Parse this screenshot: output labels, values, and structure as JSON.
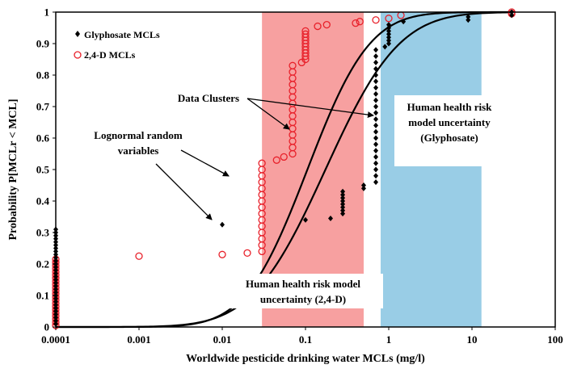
{
  "chart_data": {
    "type": "scatter",
    "title": "",
    "xlabel": "Worldwide pesticide drinking water MCLs (mg/l)",
    "ylabel": "Probability P[MCLr < MCL]",
    "x_scale": "log",
    "xlim": [
      0.0001,
      100
    ],
    "ylim": [
      0,
      1
    ],
    "x_ticks": [
      {
        "value": 0.0001,
        "label": "0.0001"
      },
      {
        "value": 0.001,
        "label": "0.001"
      },
      {
        "value": 0.01,
        "label": "0.01"
      },
      {
        "value": 0.1,
        "label": "0.1"
      },
      {
        "value": 1,
        "label": "1"
      },
      {
        "value": 10,
        "label": "10"
      },
      {
        "value": 100,
        "label": "100"
      }
    ],
    "y_ticks": [
      {
        "value": 0,
        "label": "0"
      },
      {
        "value": 0.1,
        "label": "0.1"
      },
      {
        "value": 0.2,
        "label": "0.2"
      },
      {
        "value": 0.3,
        "label": "0.3"
      },
      {
        "value": 0.4,
        "label": "0.4"
      },
      {
        "value": 0.5,
        "label": "0.5"
      },
      {
        "value": 0.6,
        "label": "0.6"
      },
      {
        "value": 0.7,
        "label": "0.7"
      },
      {
        "value": 0.8,
        "label": "0.8"
      },
      {
        "value": 0.9,
        "label": "0.9"
      },
      {
        "value": 1,
        "label": "1"
      }
    ],
    "grid": false,
    "legend_position": "top-left",
    "colors": {
      "glyphosate": "#000000",
      "d24": "#e8202a",
      "band_24d": "#f7a0a0",
      "band_gly": "#99cde6",
      "curve": "#000000"
    },
    "bands": [
      {
        "id": "band-24d",
        "x_from": 0.03,
        "x_to": 0.5,
        "color": "#f7a0a0"
      },
      {
        "id": "band-glyphosate",
        "x_from": 0.8,
        "x_to": 13,
        "color": "#99cde6"
      }
    ],
    "series": [
      {
        "name": "Glyphosate MCLs",
        "marker": "diamond",
        "color": "#000000",
        "points": [
          [
            0.0001,
            0.01
          ],
          [
            0.0001,
            0.02
          ],
          [
            0.0001,
            0.03
          ],
          [
            0.0001,
            0.04
          ],
          [
            0.0001,
            0.05
          ],
          [
            0.0001,
            0.06
          ],
          [
            0.0001,
            0.07
          ],
          [
            0.0001,
            0.08
          ],
          [
            0.0001,
            0.09
          ],
          [
            0.0001,
            0.1
          ],
          [
            0.0001,
            0.11
          ],
          [
            0.0001,
            0.12
          ],
          [
            0.0001,
            0.13
          ],
          [
            0.0001,
            0.14
          ],
          [
            0.0001,
            0.15
          ],
          [
            0.0001,
            0.16
          ],
          [
            0.0001,
            0.17
          ],
          [
            0.0001,
            0.18
          ],
          [
            0.0001,
            0.19
          ],
          [
            0.0001,
            0.2
          ],
          [
            0.0001,
            0.21
          ],
          [
            0.0001,
            0.22
          ],
          [
            0.0001,
            0.23
          ],
          [
            0.0001,
            0.24
          ],
          [
            0.0001,
            0.25
          ],
          [
            0.0001,
            0.26
          ],
          [
            0.0001,
            0.27
          ],
          [
            0.0001,
            0.28
          ],
          [
            0.0001,
            0.29
          ],
          [
            0.0001,
            0.3
          ],
          [
            0.0001,
            0.31
          ],
          [
            0.01,
            0.325
          ],
          [
            0.1,
            0.34
          ],
          [
            0.2,
            0.345
          ],
          [
            0.28,
            0.36
          ],
          [
            0.28,
            0.37
          ],
          [
            0.28,
            0.38
          ],
          [
            0.28,
            0.39
          ],
          [
            0.28,
            0.4
          ],
          [
            0.28,
            0.41
          ],
          [
            0.28,
            0.42
          ],
          [
            0.28,
            0.43
          ],
          [
            0.5,
            0.44
          ],
          [
            0.5,
            0.45
          ],
          [
            0.7,
            0.46
          ],
          [
            0.7,
            0.48
          ],
          [
            0.7,
            0.5
          ],
          [
            0.7,
            0.52
          ],
          [
            0.7,
            0.54
          ],
          [
            0.7,
            0.56
          ],
          [
            0.7,
            0.58
          ],
          [
            0.7,
            0.6
          ],
          [
            0.7,
            0.62
          ],
          [
            0.7,
            0.64
          ],
          [
            0.7,
            0.66
          ],
          [
            0.7,
            0.68
          ],
          [
            0.7,
            0.7
          ],
          [
            0.7,
            0.72
          ],
          [
            0.7,
            0.74
          ],
          [
            0.7,
            0.76
          ],
          [
            0.7,
            0.78
          ],
          [
            0.7,
            0.8
          ],
          [
            0.7,
            0.82
          ],
          [
            0.7,
            0.84
          ],
          [
            0.7,
            0.86
          ],
          [
            0.7,
            0.88
          ],
          [
            0.9,
            0.89
          ],
          [
            1,
            0.9
          ],
          [
            1,
            0.91
          ],
          [
            1,
            0.92
          ],
          [
            1,
            0.93
          ],
          [
            1,
            0.94
          ],
          [
            1,
            0.95
          ],
          [
            1,
            0.96
          ],
          [
            1.5,
            0.97
          ],
          [
            9,
            0.975
          ],
          [
            9,
            0.985
          ],
          [
            30,
            0.99
          ],
          [
            30,
            1.0
          ]
        ]
      },
      {
        "name": "2,4-D MCLs",
        "marker": "circle",
        "color": "#e8202a",
        "points": [
          [
            0.0001,
            0.005
          ],
          [
            0.0001,
            0.015
          ],
          [
            0.0001,
            0.025
          ],
          [
            0.0001,
            0.035
          ],
          [
            0.0001,
            0.045
          ],
          [
            0.0001,
            0.055
          ],
          [
            0.0001,
            0.065
          ],
          [
            0.0001,
            0.075
          ],
          [
            0.0001,
            0.085
          ],
          [
            0.0001,
            0.095
          ],
          [
            0.0001,
            0.105
          ],
          [
            0.0001,
            0.115
          ],
          [
            0.0001,
            0.125
          ],
          [
            0.0001,
            0.135
          ],
          [
            0.0001,
            0.145
          ],
          [
            0.0001,
            0.155
          ],
          [
            0.0001,
            0.165
          ],
          [
            0.0001,
            0.175
          ],
          [
            0.0001,
            0.185
          ],
          [
            0.0001,
            0.195
          ],
          [
            0.0001,
            0.205
          ],
          [
            0.0001,
            0.215
          ],
          [
            0.001,
            0.225
          ],
          [
            0.01,
            0.23
          ],
          [
            0.02,
            0.235
          ],
          [
            0.03,
            0.24
          ],
          [
            0.03,
            0.26
          ],
          [
            0.03,
            0.28
          ],
          [
            0.03,
            0.3
          ],
          [
            0.03,
            0.32
          ],
          [
            0.03,
            0.34
          ],
          [
            0.03,
            0.36
          ],
          [
            0.03,
            0.38
          ],
          [
            0.03,
            0.4
          ],
          [
            0.03,
            0.42
          ],
          [
            0.03,
            0.44
          ],
          [
            0.03,
            0.46
          ],
          [
            0.03,
            0.48
          ],
          [
            0.03,
            0.5
          ],
          [
            0.03,
            0.52
          ],
          [
            0.045,
            0.53
          ],
          [
            0.055,
            0.54
          ],
          [
            0.07,
            0.55
          ],
          [
            0.07,
            0.57
          ],
          [
            0.07,
            0.59
          ],
          [
            0.07,
            0.61
          ],
          [
            0.07,
            0.63
          ],
          [
            0.07,
            0.65
          ],
          [
            0.07,
            0.67
          ],
          [
            0.07,
            0.69
          ],
          [
            0.07,
            0.71
          ],
          [
            0.07,
            0.73
          ],
          [
            0.07,
            0.75
          ],
          [
            0.07,
            0.77
          ],
          [
            0.07,
            0.79
          ],
          [
            0.07,
            0.81
          ],
          [
            0.07,
            0.83
          ],
          [
            0.09,
            0.84
          ],
          [
            0.1,
            0.85
          ],
          [
            0.1,
            0.86
          ],
          [
            0.1,
            0.87
          ],
          [
            0.1,
            0.88
          ],
          [
            0.1,
            0.89
          ],
          [
            0.1,
            0.9
          ],
          [
            0.1,
            0.91
          ],
          [
            0.1,
            0.92
          ],
          [
            0.1,
            0.93
          ],
          [
            0.1,
            0.94
          ],
          [
            0.14,
            0.955
          ],
          [
            0.18,
            0.96
          ],
          [
            0.4,
            0.965
          ],
          [
            0.45,
            0.97
          ],
          [
            0.7,
            0.975
          ],
          [
            1,
            0.98
          ],
          [
            1.4,
            0.99
          ],
          [
            30,
            0.995
          ],
          [
            30,
            1.0
          ]
        ]
      }
    ],
    "curves": [
      {
        "id": "lognormal-curve-steep",
        "mu": -2.25,
        "sigma": 1.35
      },
      {
        "id": "lognormal-curve-shallow",
        "mu": -1.75,
        "sigma": 1.6
      }
    ],
    "annotations": {
      "data_clusters": "Data Clusters",
      "lognormal_line1": "Lognormal random",
      "lognormal_line2": "variables",
      "hh_gly_line1": "Human health risk",
      "hh_gly_line2": "model uncertainty",
      "hh_gly_line3": "(Glyphosate)",
      "hh_24d_line1": "Human health risk model",
      "hh_24d_line2": "uncertainty (2,4-D)"
    }
  }
}
